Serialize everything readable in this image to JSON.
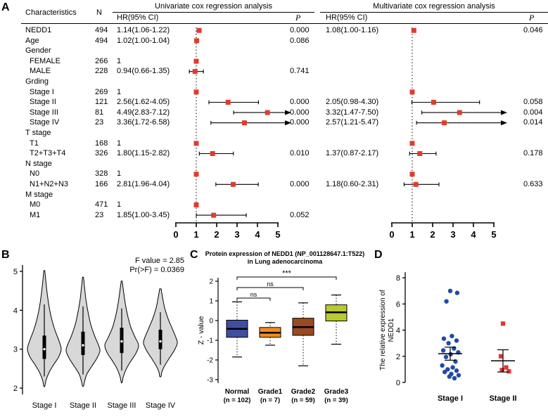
{
  "panel_labels": {
    "a": "A",
    "b": "B",
    "c": "C",
    "d": "D"
  },
  "chart_data": [
    {
      "type": "table",
      "panel": "A",
      "section_titles": [
        "Univariate cox regression analysis",
        "Multivariate cox regression analysis"
      ],
      "col_characteristics": "Characteristics",
      "col_n": "N",
      "col_hr": "HR(95% CI)",
      "col_p": "P",
      "axis_ticks": [
        0,
        1,
        2,
        3,
        4,
        5
      ],
      "reference_value": 1,
      "marker_color": "#e23b2e",
      "rows": [
        {
          "label": "NEDD1",
          "n": "494",
          "uni": {
            "text": "1.14(1.06-1.22)",
            "est": 1.14,
            "lo": 1.06,
            "hi": 1.22,
            "p": "0.000"
          },
          "multi": {
            "text": "1.08(1.00-1.16)",
            "est": 1.08,
            "lo": 1.0,
            "hi": 1.16,
            "p": "0.046"
          }
        },
        {
          "label": "Age",
          "n": "494",
          "uni": {
            "text": "1.02(1.00-1.04)",
            "est": 1.02,
            "lo": 1.0,
            "hi": 1.04,
            "p": "0.086"
          }
        },
        {
          "label": "Gender",
          "group": true
        },
        {
          "label": "FEMALE",
          "indent": true,
          "n": "266",
          "uni": {
            "text": "1",
            "est": 1
          }
        },
        {
          "label": "MALE",
          "indent": true,
          "n": "228",
          "uni": {
            "text": "0.94(0.66-1.35)",
            "est": 0.94,
            "lo": 0.66,
            "hi": 1.35,
            "p": "0.741"
          }
        },
        {
          "label": "Grding",
          "group": true
        },
        {
          "label": "Stage I",
          "indent": true,
          "n": "269",
          "uni": {
            "text": "1",
            "est": 1
          },
          "multi": {
            "est": 1
          }
        },
        {
          "label": "Stage II",
          "indent": true,
          "n": "121",
          "uni": {
            "text": "2.56(1.62-4.05)",
            "est": 2.56,
            "lo": 1.62,
            "hi": 4.05,
            "p": "0.000"
          },
          "multi": {
            "text": "2.05(0.98-4.30)",
            "est": 2.05,
            "lo": 0.98,
            "hi": 4.3,
            "p": "0.058"
          }
        },
        {
          "label": "Stage III",
          "indent": true,
          "n": "81",
          "uni": {
            "text": "4.49(2.83-7.12)",
            "est": 4.49,
            "lo": 2.83,
            "hi": 7.12,
            "p": "0.000"
          },
          "multi": {
            "text": "3.32(1.47-7.50)",
            "est": 3.32,
            "lo": 1.47,
            "hi": 7.5,
            "p": "0.004"
          }
        },
        {
          "label": "Stage IV",
          "indent": true,
          "n": "23",
          "uni": {
            "text": "3.36(1.72-6.58)",
            "est": 3.36,
            "lo": 1.72,
            "hi": 6.58,
            "p": "0.000"
          },
          "multi": {
            "text": "2.57(1.21-5.47)",
            "est": 2.57,
            "lo": 1.21,
            "hi": 5.47,
            "p": "0.014"
          }
        },
        {
          "label": "T stage",
          "group": true
        },
        {
          "label": "T1",
          "indent": true,
          "n": "168",
          "uni": {
            "text": "1",
            "est": 1
          },
          "multi": {
            "est": 1
          }
        },
        {
          "label": "T2+T3+T4",
          "indent": true,
          "n": "326",
          "uni": {
            "text": "1.80(1.15-2.82)",
            "est": 1.8,
            "lo": 1.15,
            "hi": 2.82,
            "p": "0.010"
          },
          "multi": {
            "text": "1.37(0.87-2.17)",
            "est": 1.37,
            "lo": 0.87,
            "hi": 2.17,
            "p": "0.178"
          }
        },
        {
          "label": "N stage",
          "group": true
        },
        {
          "label": "N0",
          "indent": true,
          "n": "328",
          "uni": {
            "text": "1",
            "est": 1
          },
          "multi": {
            "est": 1
          }
        },
        {
          "label": "N1+N2+N3",
          "indent": true,
          "n": "166",
          "uni": {
            "text": "2.81(1.96-4.04)",
            "est": 2.81,
            "lo": 1.96,
            "hi": 4.04,
            "p": "0.000"
          },
          "multi": {
            "text": "1.18(0.60-2.31)",
            "est": 1.18,
            "lo": 0.6,
            "hi": 2.31,
            "p": "0.633"
          }
        },
        {
          "label": "M stage",
          "group": true
        },
        {
          "label": "M0",
          "indent": true,
          "n": "471",
          "uni": {
            "text": "1",
            "est": 1
          }
        },
        {
          "label": "M1",
          "indent": true,
          "n": "23",
          "uni": {
            "text": "1.85(1.00-3.45)",
            "est": 1.85,
            "lo": 1.0,
            "hi": 3.45,
            "p": "0.052"
          }
        }
      ]
    },
    {
      "type": "violin",
      "panel": "B",
      "categories": [
        "Stage I",
        "Stage II",
        "Stage III",
        "Stage IV"
      ],
      "yticks": [
        2,
        3,
        4,
        5
      ],
      "ylim": [
        2,
        5
      ],
      "annotation": [
        "F value = 2.85",
        "Pr(>F) = 0.0369"
      ],
      "fill": "#d8d8d8",
      "violins": [
        {
          "profile": [
            [
              5.02,
              0.03
            ],
            [
              4.7,
              0.1
            ],
            [
              4.4,
              0.18
            ],
            [
              4.1,
              0.28
            ],
            [
              3.8,
              0.42
            ],
            [
              3.5,
              0.62
            ],
            [
              3.2,
              0.88
            ],
            [
              3.0,
              1.0
            ],
            [
              2.8,
              0.85
            ],
            [
              2.6,
              0.55
            ],
            [
              2.4,
              0.28
            ],
            [
              2.2,
              0.1
            ],
            [
              2.05,
              0.03
            ]
          ],
          "box": [
            2.75,
            3.35
          ],
          "median": 3.0,
          "whisker": [
            2.3,
            4.15
          ]
        },
        {
          "profile": [
            [
              4.85,
              0.03
            ],
            [
              4.55,
              0.1
            ],
            [
              4.25,
              0.18
            ],
            [
              3.95,
              0.3
            ],
            [
              3.65,
              0.45
            ],
            [
              3.35,
              0.68
            ],
            [
              3.1,
              0.92
            ],
            [
              2.95,
              1.0
            ],
            [
              2.75,
              0.8
            ],
            [
              2.55,
              0.5
            ],
            [
              2.35,
              0.22
            ],
            [
              2.15,
              0.08
            ],
            [
              2.05,
              0.03
            ]
          ],
          "box": [
            2.85,
            3.45
          ],
          "median": 3.1,
          "whisker": [
            2.35,
            4.1
          ]
        },
        {
          "profile": [
            [
              4.75,
              0.03
            ],
            [
              4.45,
              0.12
            ],
            [
              4.15,
              0.22
            ],
            [
              3.85,
              0.36
            ],
            [
              3.55,
              0.55
            ],
            [
              3.3,
              0.8
            ],
            [
              3.1,
              1.0
            ],
            [
              2.9,
              0.85
            ],
            [
              2.7,
              0.55
            ],
            [
              2.5,
              0.28
            ],
            [
              2.3,
              0.1
            ],
            [
              2.15,
              0.03
            ]
          ],
          "box": [
            2.9,
            3.55
          ],
          "median": 3.2,
          "whisker": [
            2.45,
            4.05
          ]
        },
        {
          "profile": [
            [
              4.55,
              0.04
            ],
            [
              4.3,
              0.14
            ],
            [
              4.05,
              0.26
            ],
            [
              3.8,
              0.44
            ],
            [
              3.55,
              0.68
            ],
            [
              3.3,
              0.92
            ],
            [
              3.15,
              1.0
            ],
            [
              2.95,
              0.8
            ],
            [
              2.75,
              0.5
            ],
            [
              2.55,
              0.22
            ],
            [
              2.4,
              0.08
            ],
            [
              2.3,
              0.04
            ]
          ],
          "box": [
            3.0,
            3.5
          ],
          "median": 3.2,
          "whisker": [
            2.6,
            3.95
          ]
        }
      ]
    },
    {
      "type": "box",
      "panel": "C",
      "title_lines": [
        "Protein expression of NEDD1 (NP_001128647.1:T522)",
        "in Lung adenocarcinoma"
      ],
      "ylabel": "Z - value",
      "yticks": [
        -3,
        -2,
        -1,
        0,
        1,
        2
      ],
      "categories": [
        "Normal",
        "Grade1",
        "Grade2",
        "Grade3"
      ],
      "counts": [
        "(n = 102)",
        "(n = 7)",
        "(n = 59)",
        "(n = 39)"
      ],
      "boxes": [
        {
          "low": -1.85,
          "q1": -0.85,
          "med": -0.42,
          "q3": 0.02,
          "high": 0.95,
          "color": "#3f4f9f"
        },
        {
          "low": -1.25,
          "q1": -0.85,
          "med": -0.62,
          "q3": -0.35,
          "high": -0.1,
          "color": "#f18c20"
        },
        {
          "low": -2.3,
          "q1": -0.75,
          "med": -0.33,
          "q3": 0.12,
          "high": 0.9,
          "color": "#9a4a20"
        },
        {
          "low": -1.2,
          "q1": -0.02,
          "med": 0.42,
          "q3": 0.8,
          "high": 1.3,
          "color": "#b8c932"
        }
      ],
      "comparisons": [
        {
          "from": 0,
          "to": 1,
          "label": "ns"
        },
        {
          "from": 0,
          "to": 2,
          "label": "ns"
        },
        {
          "from": 0,
          "to": 3,
          "label": "***"
        }
      ]
    },
    {
      "type": "scatter",
      "panel": "D",
      "ylabel_lines": [
        "The relative expression of",
        "NEDD1"
      ],
      "yticks": [
        0,
        2,
        4,
        6,
        8
      ],
      "groups": [
        {
          "label": "Stage I",
          "color": "#1f4ba5",
          "marker": "circle",
          "mean": 2.2,
          "sem": 0.5,
          "points": [
            [
              0.0,
              7.0
            ],
            [
              0.33,
              6.85
            ],
            [
              -0.18,
              6.2
            ],
            [
              0.08,
              3.55
            ],
            [
              -0.3,
              3.35
            ],
            [
              0.3,
              3.2
            ],
            [
              -0.08,
              3.0
            ],
            [
              0.18,
              2.6
            ],
            [
              -0.33,
              2.45
            ],
            [
              0.38,
              2.3
            ],
            [
              0.02,
              2.15
            ],
            [
              -0.2,
              1.95
            ],
            [
              0.25,
              1.6
            ],
            [
              -0.38,
              1.3
            ],
            [
              0.12,
              1.15
            ],
            [
              -0.12,
              1.0
            ],
            [
              0.3,
              0.9
            ],
            [
              -0.26,
              0.8
            ],
            [
              0.05,
              0.65
            ],
            [
              0.4,
              0.55
            ],
            [
              -0.04,
              0.45
            ],
            [
              0.2,
              0.32
            ]
          ]
        },
        {
          "label": "Stage II",
          "color": "#e23434",
          "marker": "square",
          "mean": 1.65,
          "sem": 0.85,
          "points": [
            [
              0.0,
              4.5
            ],
            [
              -0.1,
              2.0
            ],
            [
              0.15,
              1.15
            ],
            [
              -0.05,
              0.95
            ],
            [
              0.28,
              0.85
            ]
          ]
        }
      ]
    }
  ]
}
